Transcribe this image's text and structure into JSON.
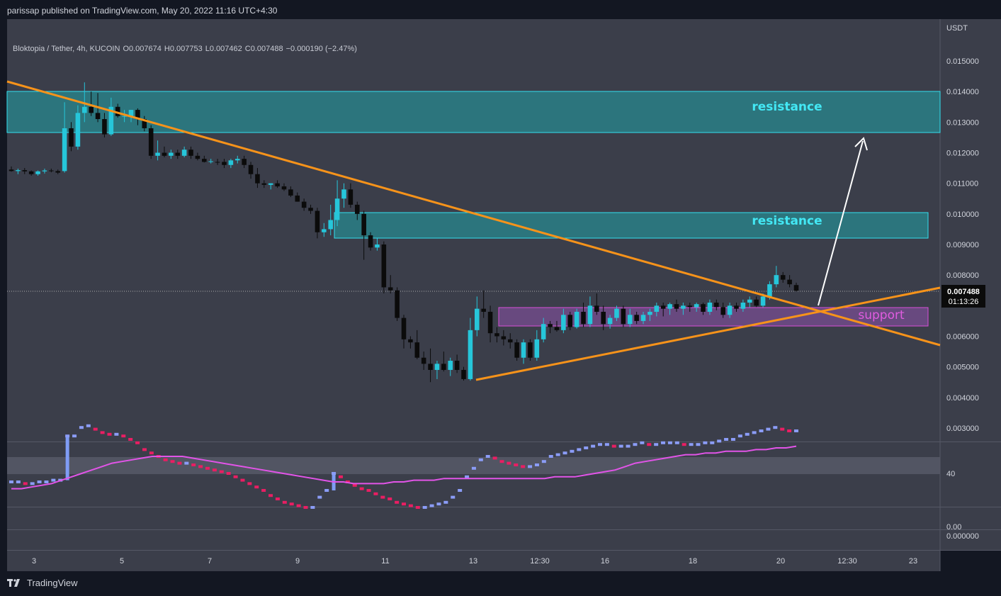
{
  "header": {
    "published": "parissap published on TradingView.com, May 20, 2022 11:16 UTC+4:30"
  },
  "legend": {
    "symbol": "Bloktopia / Tether, 4h, KUCOIN",
    "o_label": "O",
    "o_value": "0.007674",
    "h_label": "H",
    "h_value": "0.007753",
    "l_label": "L",
    "l_value": "0.007462",
    "c_label": "C",
    "c_value": "0.007488",
    "change": "−0.000190 (−2.47%)"
  },
  "price_axis": {
    "currency": "USDT",
    "last_price": "0.007488",
    "countdown": "01:13:26"
  },
  "annotations": {
    "resistance_upper": "resistance",
    "resistance_lower": "resistance",
    "support": "support"
  },
  "footer": {
    "brand": "TradingView"
  },
  "colors": {
    "background": "#131722",
    "pane": "#3b3e4a",
    "up": "#26c6da",
    "down": "#0b0b0b",
    "resistance_fill": "#2a7f86",
    "resistance_border": "#33e0f0",
    "resistance_text": "#43e8f5",
    "support_fill": "#6e4a85",
    "support_border": "#d84fd8",
    "support_text": "#e05ce0",
    "trendline": "#f7931a",
    "arrow": "#ffffff",
    "indicator_line": "#e254e8"
  },
  "chart_data": [
    {
      "type": "candlestick",
      "title": "Bloktopia / Tether, 4h, KUCOIN",
      "x_ticks": [
        "3",
        "5",
        "7",
        "9",
        "11",
        "13",
        "12:30",
        "16",
        "18",
        "20",
        "12:30",
        "23"
      ],
      "y_ticks": [
        "0.015000",
        "0.014000",
        "0.013000",
        "0.012000",
        "0.011000",
        "0.010000",
        "0.009000",
        "0.008000",
        "0.006000",
        "0.005000",
        "0.004000",
        "0.003000"
      ],
      "ylim": [
        0.0024,
        0.0157
      ],
      "grid": false,
      "candles": [
        {
          "o": 0.01145,
          "h": 0.01155,
          "l": 0.01138,
          "c": 0.0114
        },
        {
          "o": 0.0114,
          "h": 0.01148,
          "l": 0.0113,
          "c": 0.01143
        },
        {
          "o": 0.01143,
          "h": 0.0115,
          "l": 0.0113,
          "c": 0.01139
        },
        {
          "o": 0.01139,
          "h": 0.01142,
          "l": 0.01125,
          "c": 0.0113
        },
        {
          "o": 0.0113,
          "h": 0.01142,
          "l": 0.01125,
          "c": 0.01139
        },
        {
          "o": 0.01139,
          "h": 0.01148,
          "l": 0.01132,
          "c": 0.01142
        },
        {
          "o": 0.01142,
          "h": 0.01148,
          "l": 0.01136,
          "c": 0.0114
        },
        {
          "o": 0.0114,
          "h": 0.01145,
          "l": 0.0113,
          "c": 0.01135
        },
        {
          "o": 0.0114,
          "h": 0.01365,
          "l": 0.01135,
          "c": 0.0128
        },
        {
          "o": 0.0128,
          "h": 0.013,
          "l": 0.01205,
          "c": 0.0122
        },
        {
          "o": 0.0122,
          "h": 0.01355,
          "l": 0.0121,
          "c": 0.0133
        },
        {
          "o": 0.0133,
          "h": 0.0143,
          "l": 0.013,
          "c": 0.0135
        },
        {
          "o": 0.0135,
          "h": 0.014,
          "l": 0.0132,
          "c": 0.0133
        },
        {
          "o": 0.0133,
          "h": 0.01395,
          "l": 0.013,
          "c": 0.0131
        },
        {
          "o": 0.0131,
          "h": 0.0133,
          "l": 0.0125,
          "c": 0.0126
        },
        {
          "o": 0.0126,
          "h": 0.0138,
          "l": 0.01255,
          "c": 0.0135
        },
        {
          "o": 0.0135,
          "h": 0.0136,
          "l": 0.01315,
          "c": 0.0132
        },
        {
          "o": 0.0132,
          "h": 0.0134,
          "l": 0.013,
          "c": 0.0132
        },
        {
          "o": 0.0132,
          "h": 0.0134,
          "l": 0.013,
          "c": 0.0134
        },
        {
          "o": 0.0134,
          "h": 0.01345,
          "l": 0.0129,
          "c": 0.0131
        },
        {
          "o": 0.0131,
          "h": 0.0132,
          "l": 0.0127,
          "c": 0.0128
        },
        {
          "o": 0.0128,
          "h": 0.0129,
          "l": 0.0118,
          "c": 0.0119
        },
        {
          "o": 0.0119,
          "h": 0.0124,
          "l": 0.01175,
          "c": 0.012
        },
        {
          "o": 0.012,
          "h": 0.0122,
          "l": 0.01185,
          "c": 0.0119
        },
        {
          "o": 0.0119,
          "h": 0.0121,
          "l": 0.0118,
          "c": 0.012
        },
        {
          "o": 0.012,
          "h": 0.0121,
          "l": 0.0118,
          "c": 0.0119
        },
        {
          "o": 0.0119,
          "h": 0.0122,
          "l": 0.01185,
          "c": 0.0121
        },
        {
          "o": 0.0121,
          "h": 0.0122,
          "l": 0.0118,
          "c": 0.0119
        },
        {
          "o": 0.0119,
          "h": 0.012,
          "l": 0.01175,
          "c": 0.0118
        },
        {
          "o": 0.0118,
          "h": 0.0119,
          "l": 0.01168,
          "c": 0.0117
        },
        {
          "o": 0.0117,
          "h": 0.0118,
          "l": 0.01165,
          "c": 0.01172
        },
        {
          "o": 0.0117,
          "h": 0.0118,
          "l": 0.0116,
          "c": 0.01168
        },
        {
          "o": 0.0117,
          "h": 0.0118,
          "l": 0.0115,
          "c": 0.0116
        },
        {
          "o": 0.0116,
          "h": 0.0118,
          "l": 0.0115,
          "c": 0.01175
        },
        {
          "o": 0.01175,
          "h": 0.0119,
          "l": 0.01165,
          "c": 0.0118
        },
        {
          "o": 0.0118,
          "h": 0.0119,
          "l": 0.0115,
          "c": 0.0116
        },
        {
          "o": 0.0116,
          "h": 0.0117,
          "l": 0.01115,
          "c": 0.0113
        },
        {
          "o": 0.0113,
          "h": 0.0115,
          "l": 0.01085,
          "c": 0.011
        },
        {
          "o": 0.011,
          "h": 0.0111,
          "l": 0.01085,
          "c": 0.01095
        },
        {
          "o": 0.01095,
          "h": 0.011,
          "l": 0.0108,
          "c": 0.011
        },
        {
          "o": 0.011,
          "h": 0.0111,
          "l": 0.01085,
          "c": 0.0109
        },
        {
          "o": 0.0109,
          "h": 0.011,
          "l": 0.01075,
          "c": 0.0108
        },
        {
          "o": 0.0108,
          "h": 0.0109,
          "l": 0.01055,
          "c": 0.0106
        },
        {
          "o": 0.0106,
          "h": 0.0107,
          "l": 0.0104,
          "c": 0.0104
        },
        {
          "o": 0.0104,
          "h": 0.0105,
          "l": 0.0101,
          "c": 0.0102
        },
        {
          "o": 0.0102,
          "h": 0.0103,
          "l": 0.01,
          "c": 0.0101
        },
        {
          "o": 0.0101,
          "h": 0.0102,
          "l": 0.0092,
          "c": 0.0094
        },
        {
          "o": 0.0094,
          "h": 0.0097,
          "l": 0.00925,
          "c": 0.0095
        },
        {
          "o": 0.0095,
          "h": 0.0103,
          "l": 0.0093,
          "c": 0.0098
        },
        {
          "o": 0.0098,
          "h": 0.0111,
          "l": 0.0096,
          "c": 0.0105
        },
        {
          "o": 0.0105,
          "h": 0.011,
          "l": 0.0102,
          "c": 0.0108
        },
        {
          "o": 0.0108,
          "h": 0.011,
          "l": 0.0102,
          "c": 0.0103
        },
        {
          "o": 0.0103,
          "h": 0.0104,
          "l": 0.0098,
          "c": 0.01
        },
        {
          "o": 0.01,
          "h": 0.0101,
          "l": 0.0085,
          "c": 0.0093
        },
        {
          "o": 0.0093,
          "h": 0.0094,
          "l": 0.0088,
          "c": 0.0089
        },
        {
          "o": 0.0089,
          "h": 0.0092,
          "l": 0.0088,
          "c": 0.009
        },
        {
          "o": 0.009,
          "h": 0.0091,
          "l": 0.0074,
          "c": 0.0076
        },
        {
          "o": 0.0076,
          "h": 0.008,
          "l": 0.0074,
          "c": 0.0075
        },
        {
          "o": 0.0075,
          "h": 0.0076,
          "l": 0.0065,
          "c": 0.0066
        },
        {
          "o": 0.0066,
          "h": 0.0067,
          "l": 0.0056,
          "c": 0.0059
        },
        {
          "o": 0.0059,
          "h": 0.006,
          "l": 0.0056,
          "c": 0.0058
        },
        {
          "o": 0.0058,
          "h": 0.0062,
          "l": 0.00525,
          "c": 0.0053
        },
        {
          "o": 0.0053,
          "h": 0.0055,
          "l": 0.0049,
          "c": 0.0051
        },
        {
          "o": 0.0051,
          "h": 0.0056,
          "l": 0.0045,
          "c": 0.0049
        },
        {
          "o": 0.0049,
          "h": 0.0052,
          "l": 0.0046,
          "c": 0.0051
        },
        {
          "o": 0.0051,
          "h": 0.0055,
          "l": 0.00485,
          "c": 0.0049
        },
        {
          "o": 0.0049,
          "h": 0.0053,
          "l": 0.0047,
          "c": 0.0052
        },
        {
          "o": 0.0052,
          "h": 0.0054,
          "l": 0.0048,
          "c": 0.0049
        },
        {
          "o": 0.0049,
          "h": 0.005,
          "l": 0.00455,
          "c": 0.0046
        },
        {
          "o": 0.0046,
          "h": 0.0066,
          "l": 0.00455,
          "c": 0.0062
        },
        {
          "o": 0.0062,
          "h": 0.0073,
          "l": 0.006,
          "c": 0.0069
        },
        {
          "o": 0.0069,
          "h": 0.0075,
          "l": 0.0066,
          "c": 0.0068
        },
        {
          "o": 0.0068,
          "h": 0.007,
          "l": 0.0058,
          "c": 0.0061
        },
        {
          "o": 0.0061,
          "h": 0.0063,
          "l": 0.0058,
          "c": 0.006
        },
        {
          "o": 0.006,
          "h": 0.0062,
          "l": 0.0057,
          "c": 0.0059
        },
        {
          "o": 0.0059,
          "h": 0.0061,
          "l": 0.0056,
          "c": 0.0058
        },
        {
          "o": 0.0058,
          "h": 0.0059,
          "l": 0.0052,
          "c": 0.0053
        },
        {
          "o": 0.0053,
          "h": 0.0059,
          "l": 0.0051,
          "c": 0.0058
        },
        {
          "o": 0.0058,
          "h": 0.0059,
          "l": 0.0052,
          "c": 0.0053
        },
        {
          "o": 0.0053,
          "h": 0.0062,
          "l": 0.0052,
          "c": 0.0059
        },
        {
          "o": 0.0059,
          "h": 0.0066,
          "l": 0.0058,
          "c": 0.0064
        },
        {
          "o": 0.0064,
          "h": 0.0065,
          "l": 0.0061,
          "c": 0.0063
        },
        {
          "o": 0.0063,
          "h": 0.0065,
          "l": 0.00615,
          "c": 0.0062
        },
        {
          "o": 0.0062,
          "h": 0.0069,
          "l": 0.0061,
          "c": 0.0067
        },
        {
          "o": 0.0067,
          "h": 0.0068,
          "l": 0.0062,
          "c": 0.0063
        },
        {
          "o": 0.0063,
          "h": 0.0069,
          "l": 0.00625,
          "c": 0.0068
        },
        {
          "o": 0.0068,
          "h": 0.0071,
          "l": 0.0063,
          "c": 0.0064
        },
        {
          "o": 0.0064,
          "h": 0.0073,
          "l": 0.0063,
          "c": 0.007
        },
        {
          "o": 0.007,
          "h": 0.0074,
          "l": 0.0067,
          "c": 0.0068
        },
        {
          "o": 0.0068,
          "h": 0.007,
          "l": 0.0062,
          "c": 0.0064
        },
        {
          "o": 0.0064,
          "h": 0.0067,
          "l": 0.00625,
          "c": 0.0066
        },
        {
          "o": 0.0066,
          "h": 0.007,
          "l": 0.0065,
          "c": 0.0069
        },
        {
          "o": 0.0069,
          "h": 0.007,
          "l": 0.0063,
          "c": 0.0064
        },
        {
          "o": 0.0064,
          "h": 0.0069,
          "l": 0.0063,
          "c": 0.0067
        },
        {
          "o": 0.0067,
          "h": 0.0068,
          "l": 0.0064,
          "c": 0.0065
        },
        {
          "o": 0.0065,
          "h": 0.0068,
          "l": 0.0064,
          "c": 0.0067
        },
        {
          "o": 0.0067,
          "h": 0.0069,
          "l": 0.0065,
          "c": 0.0068
        },
        {
          "o": 0.0068,
          "h": 0.0071,
          "l": 0.00665,
          "c": 0.007
        },
        {
          "o": 0.007,
          "h": 0.0071,
          "l": 0.00665,
          "c": 0.0069
        },
        {
          "o": 0.0069,
          "h": 0.0071,
          "l": 0.0067,
          "c": 0.00705
        },
        {
          "o": 0.00705,
          "h": 0.0072,
          "l": 0.0068,
          "c": 0.0069
        },
        {
          "o": 0.0069,
          "h": 0.0071,
          "l": 0.0067,
          "c": 0.007
        },
        {
          "o": 0.007,
          "h": 0.0071,
          "l": 0.0068,
          "c": 0.00695
        },
        {
          "o": 0.00695,
          "h": 0.0071,
          "l": 0.0068,
          "c": 0.00705
        },
        {
          "o": 0.00705,
          "h": 0.0071,
          "l": 0.0067,
          "c": 0.0068
        },
        {
          "o": 0.0068,
          "h": 0.0072,
          "l": 0.0067,
          "c": 0.0071
        },
        {
          "o": 0.0071,
          "h": 0.0072,
          "l": 0.00685,
          "c": 0.00695
        },
        {
          "o": 0.00695,
          "h": 0.0071,
          "l": 0.0066,
          "c": 0.0067
        },
        {
          "o": 0.0067,
          "h": 0.0071,
          "l": 0.0066,
          "c": 0.007
        },
        {
          "o": 0.007,
          "h": 0.0071,
          "l": 0.0068,
          "c": 0.0069
        },
        {
          "o": 0.0069,
          "h": 0.0072,
          "l": 0.0068,
          "c": 0.0071
        },
        {
          "o": 0.0071,
          "h": 0.0073,
          "l": 0.00695,
          "c": 0.0072
        },
        {
          "o": 0.0072,
          "h": 0.0073,
          "l": 0.00695,
          "c": 0.007
        },
        {
          "o": 0.007,
          "h": 0.0074,
          "l": 0.00695,
          "c": 0.0073
        },
        {
          "o": 0.0073,
          "h": 0.0078,
          "l": 0.0072,
          "c": 0.0077
        },
        {
          "o": 0.0077,
          "h": 0.0083,
          "l": 0.0076,
          "c": 0.008
        },
        {
          "o": 0.008,
          "h": 0.0081,
          "l": 0.00775,
          "c": 0.00785
        },
        {
          "o": 0.00785,
          "h": 0.008,
          "l": 0.0076,
          "c": 0.0077
        },
        {
          "o": 0.007674,
          "h": 0.007753,
          "l": 0.007462,
          "c": 0.007488
        }
      ]
    },
    {
      "type": "line",
      "y_ticks": [
        "40",
        "0.00"
      ],
      "ylim": [
        0,
        100
      ],
      "band": [
        47,
        57
      ],
      "series_values_osc": [
        35,
        35,
        34,
        34,
        35,
        35,
        36,
        36,
        62,
        62,
        67,
        68,
        66,
        64,
        63,
        63,
        62,
        60,
        58,
        54,
        52,
        50,
        48,
        47,
        46,
        46,
        45,
        44,
        43,
        42,
        41,
        40,
        38,
        36,
        34,
        32,
        30,
        27,
        25,
        23,
        22,
        21,
        20,
        20,
        26,
        30,
        40,
        38,
        35,
        33,
        31,
        30,
        28,
        26,
        25,
        23,
        22,
        21,
        20,
        20,
        21,
        22,
        23,
        26,
        30,
        38,
        43,
        48,
        50,
        49,
        47,
        46,
        45,
        44,
        44,
        45,
        47,
        50,
        51,
        52,
        53,
        54,
        55,
        56,
        57,
        57,
        56,
        56,
        56,
        57,
        58,
        57,
        57,
        58,
        58,
        58,
        57,
        57,
        57,
        58,
        58,
        59,
        60,
        60,
        62,
        63,
        64,
        65,
        66,
        67,
        66,
        65,
        65
      ],
      "series_values_ma": [
        31,
        31,
        32,
        33,
        34,
        36,
        38,
        40,
        42,
        44,
        46,
        47,
        48,
        49,
        50,
        50,
        50,
        50,
        49,
        48,
        47,
        46,
        45,
        44,
        43,
        42,
        41,
        40,
        39,
        38,
        37,
        36,
        35,
        35,
        34,
        34,
        34,
        34,
        35,
        35,
        36,
        36,
        36,
        37,
        37,
        37,
        37,
        37,
        37,
        37,
        37,
        37,
        37,
        37,
        38,
        38,
        38,
        39,
        40,
        41,
        42,
        44,
        46,
        47,
        48,
        49,
        50,
        51,
        51,
        52,
        52,
        53,
        53,
        53,
        54,
        54,
        55,
        55,
        56
      ]
    }
  ]
}
